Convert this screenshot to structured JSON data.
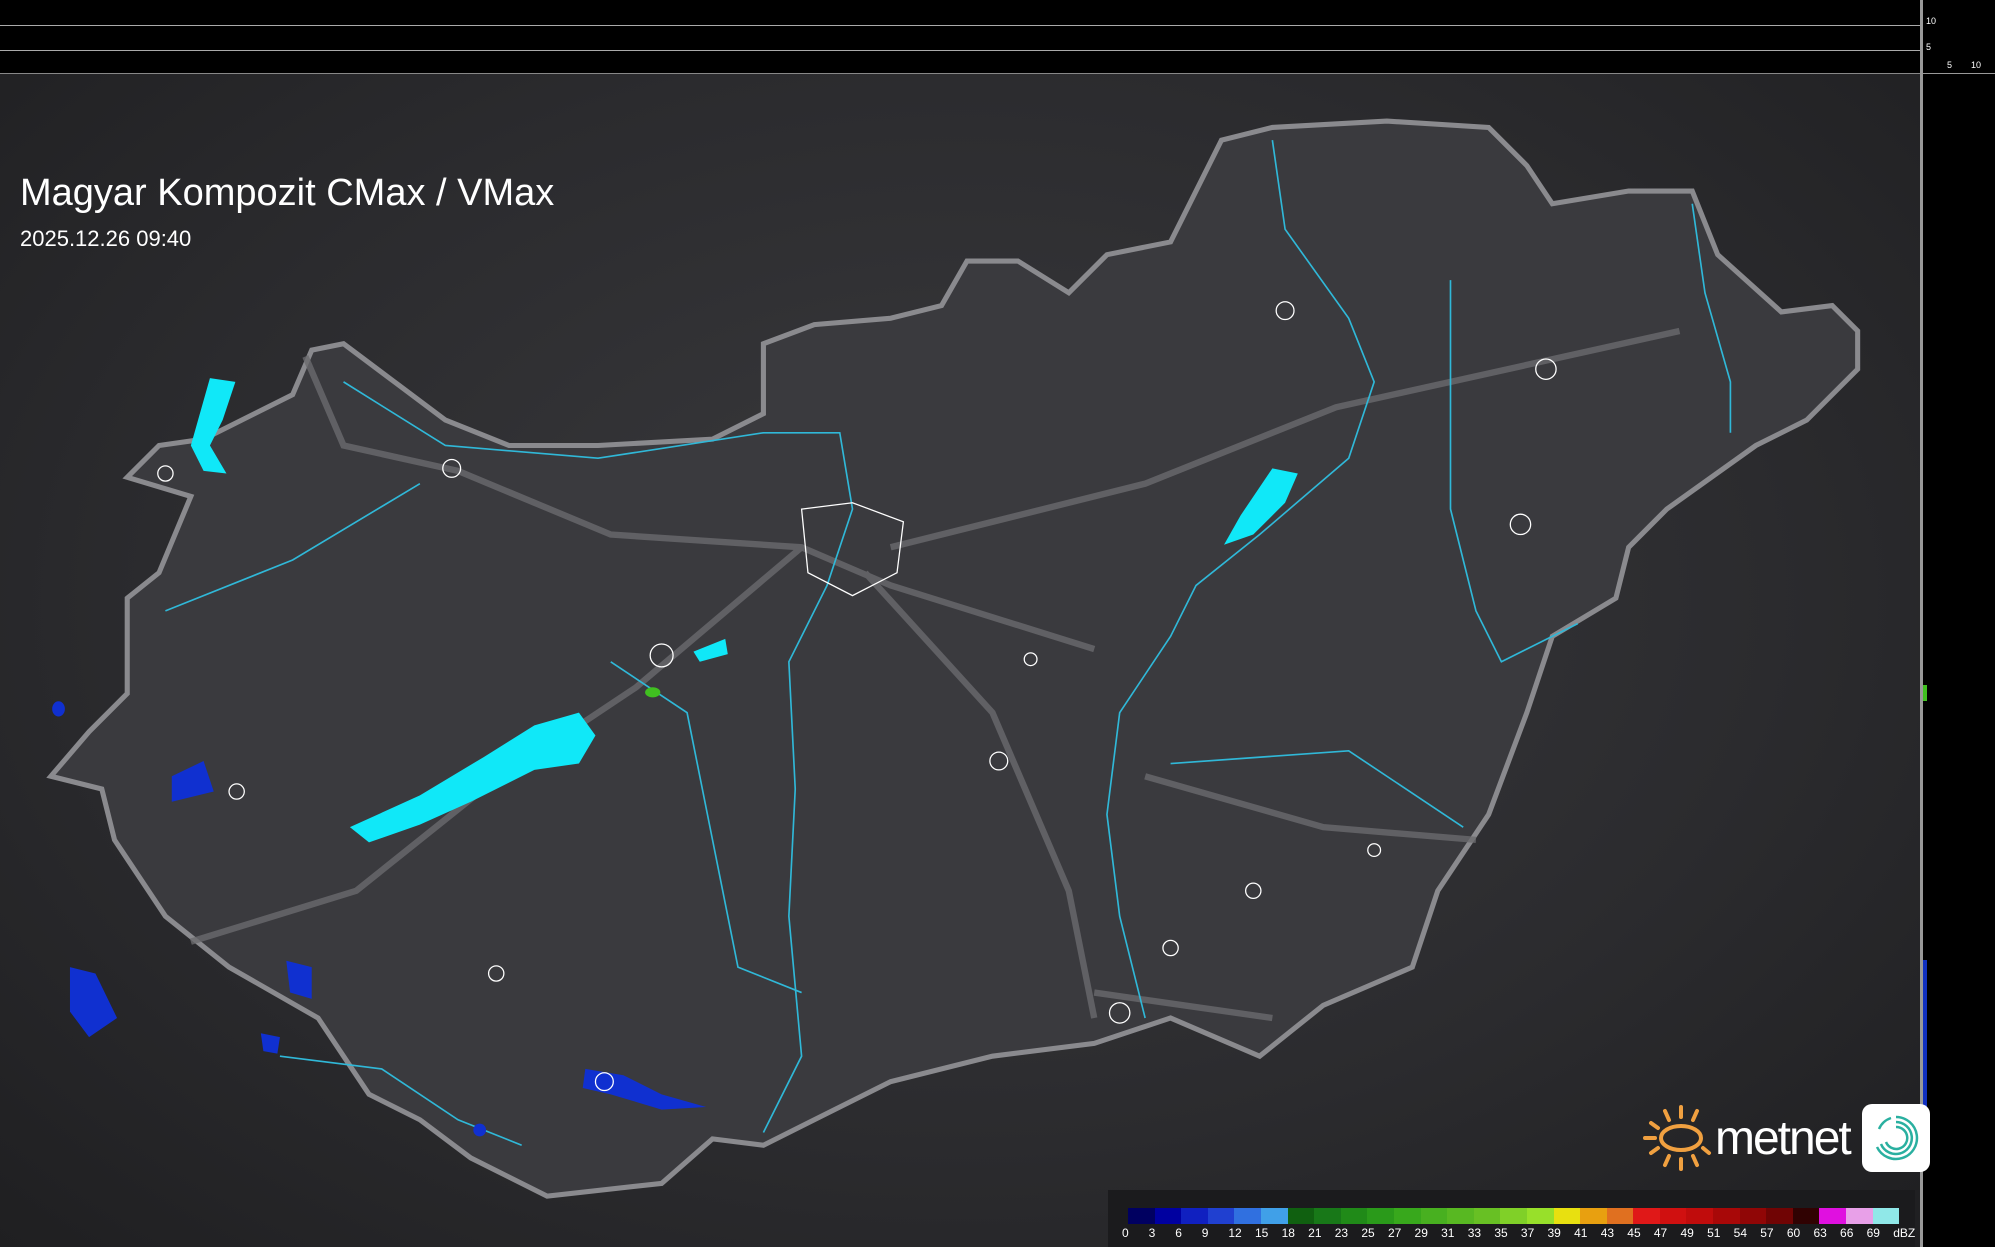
{
  "header": {
    "title": "Magyar Kompozit CMax / VMax",
    "timestamp": "2025.12.26 09:40"
  },
  "scale_top": {
    "ticks": [
      "10",
      "5"
    ]
  },
  "scale_right": {
    "ticks": [
      "5",
      "10"
    ]
  },
  "logo": {
    "brand": "metnet",
    "sun_color": "#f0a040",
    "swirl_color": "#2ab0a0"
  },
  "legend": {
    "unit": "dBZ",
    "labels": [
      "0",
      "3",
      "6",
      "9",
      "12",
      "15",
      "18",
      "21",
      "23",
      "25",
      "27",
      "29",
      "31",
      "33",
      "35",
      "37",
      "39",
      "41",
      "43",
      "45",
      "47",
      "49",
      "51",
      "54",
      "57",
      "60",
      "63",
      "66",
      "69"
    ],
    "colors": [
      "#000060",
      "#0000a0",
      "#1020c0",
      "#2040d0",
      "#3070e0",
      "#40a0e8",
      "#106010",
      "#187818",
      "#208a18",
      "#2a9a1a",
      "#38a81c",
      "#48b020",
      "#58b822",
      "#68c024",
      "#80d028",
      "#98e02a",
      "#e8e010",
      "#e8a010",
      "#e07020",
      "#e01818",
      "#d01010",
      "#c00c0c",
      "#a80808",
      "#900606",
      "#700404",
      "#300202",
      "#e010e0",
      "#e8a0e8",
      "#90e8e8"
    ]
  },
  "map": {
    "border_color": "#8a8a8e",
    "river_color": "#30b8d8",
    "lake_color": "#10e8f8",
    "precip_color": "#1030d0"
  }
}
